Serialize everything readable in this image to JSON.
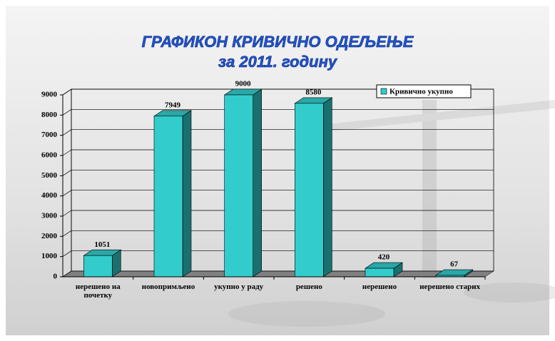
{
  "chart_data": {
    "type": "bar3d",
    "title": "ГРАФИКОН КРИВИЧНО ОДЕЉЕЊЕ",
    "subtitle": "за 2011. годину",
    "categories": [
      "нерешено на почетку",
      "новопримљено",
      "укупно у раду",
      "решено",
      "нерешено",
      "нерешено старих"
    ],
    "series": [
      {
        "name": "Кривично укупно",
        "color": "#33cccc",
        "values": [
          1051,
          7949,
          9000,
          8580,
          420,
          67
        ]
      }
    ],
    "ylim": [
      0,
      9000
    ],
    "yticks": [
      0,
      1000,
      2000,
      3000,
      4000,
      5000,
      6000,
      7000,
      8000,
      9000
    ],
    "grid": true,
    "legend": "top-right"
  }
}
